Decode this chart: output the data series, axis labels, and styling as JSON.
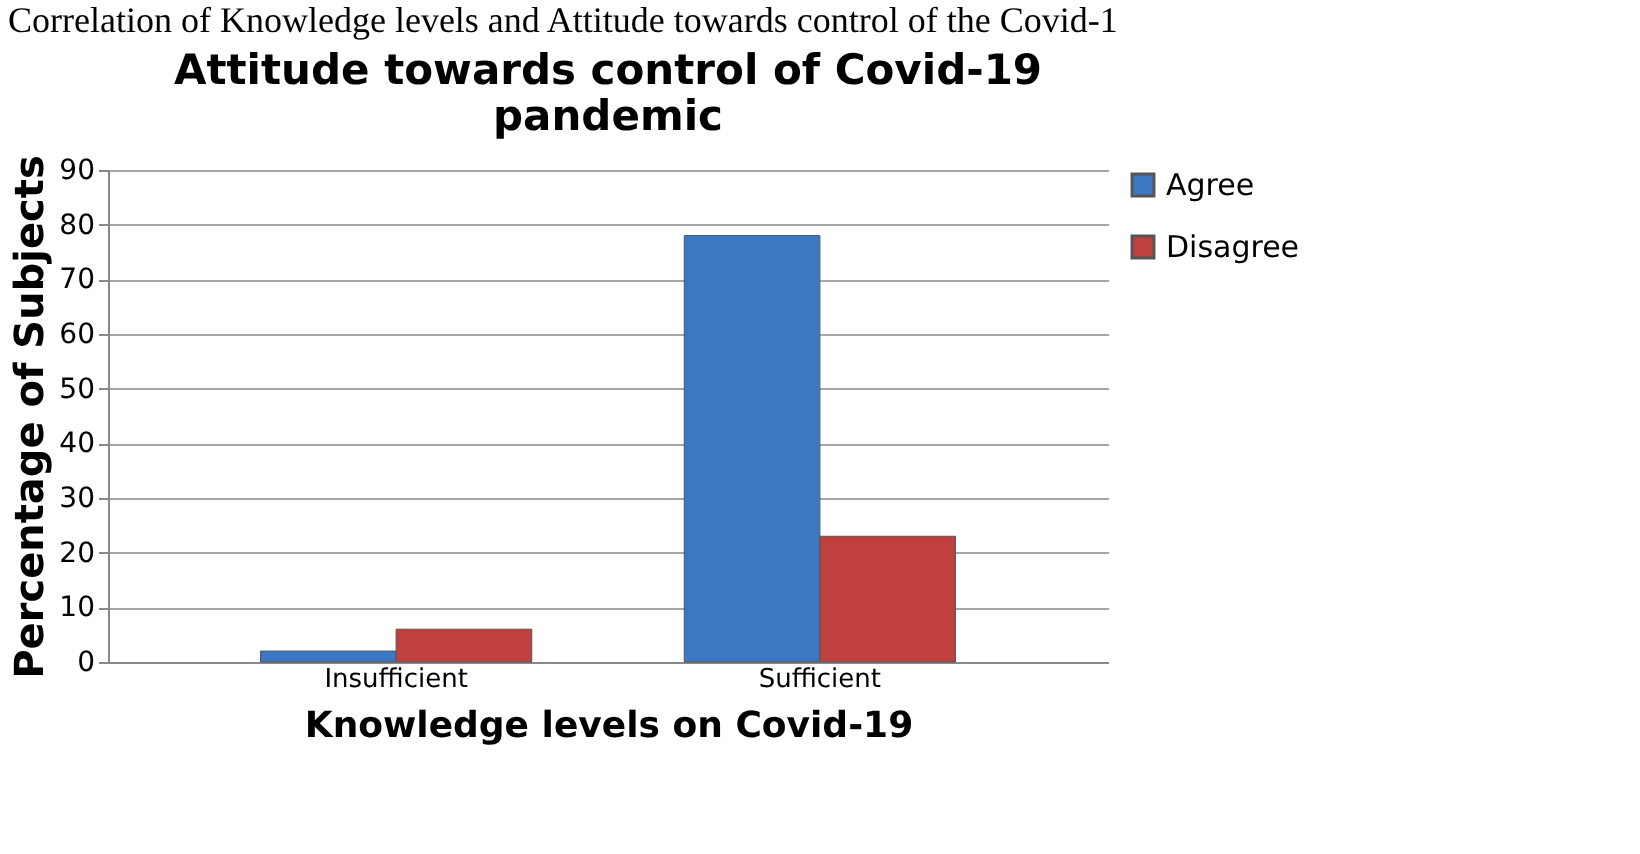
{
  "chart_data": {
    "type": "bar",
    "title": "Attitude towards control of Covid-19\npandemic",
    "annotations": [
      "Correlation of Knowledge levels and Attitude towards control of the Covid-1"
    ],
    "xlabel": "Knowledge levels on Covid-19",
    "ylabel": "Percentage of Subjects",
    "categories": [
      "Insufficient",
      "Sufficient"
    ],
    "series": [
      {
        "name": "Agree",
        "color": "#3a78c3",
        "values": [
          2,
          78
        ]
      },
      {
        "name": "Disagree",
        "color": "#c0403e",
        "values": [
          6,
          23
        ]
      }
    ],
    "ylim": [
      0,
      90
    ],
    "yticks": [
      0,
      10,
      20,
      30,
      40,
      50,
      60,
      70,
      80,
      90
    ],
    "grid": "y",
    "legend": "right"
  }
}
